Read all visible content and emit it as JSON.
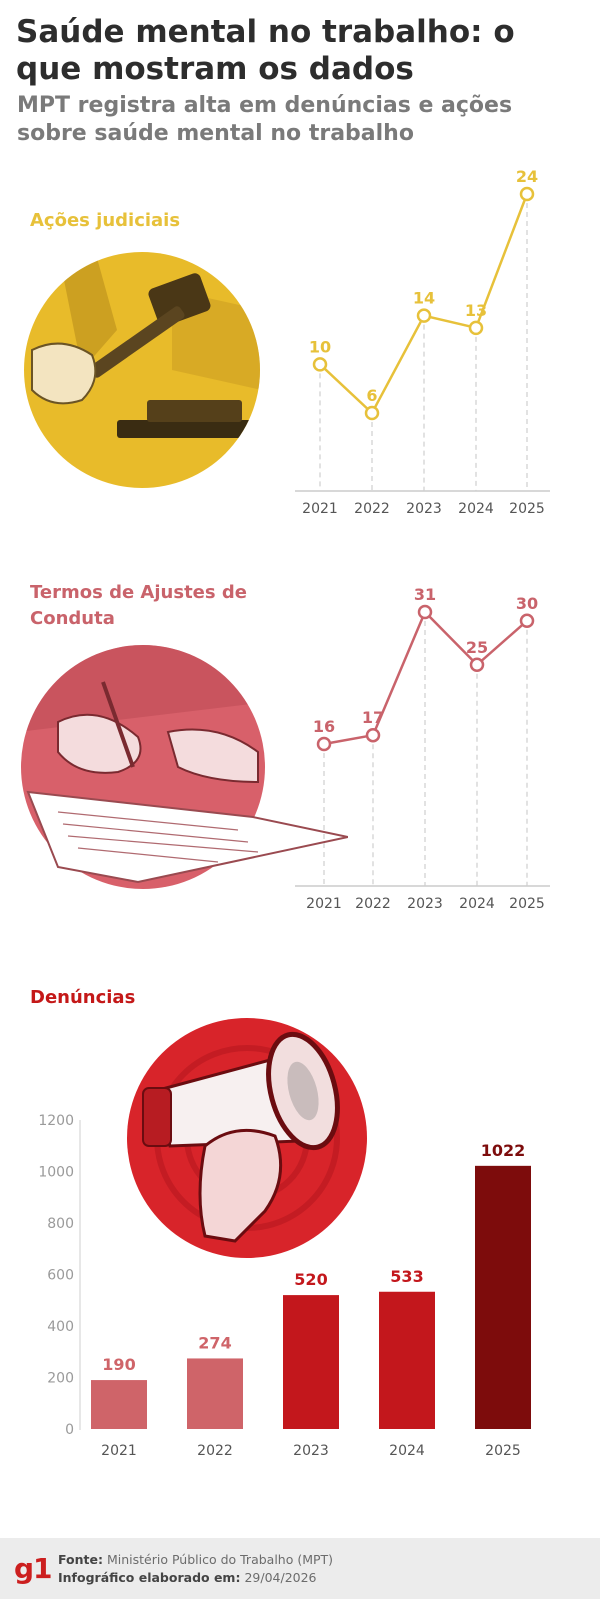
{
  "header": {
    "title": "Saúde mental no trabalho: o que mostram os dados",
    "subtitle": "MPT registra alta em denúncias e ações sobre saúde mental no trabalho"
  },
  "colors": {
    "acoes": "#e7c13a",
    "termos": "#c9636b",
    "denuncias_title": "#c41818",
    "bar_2021_2022": "#cf6469",
    "bar_2023_2024": "#c3171c",
    "bar_2025": "#7d0c0c"
  },
  "sections": {
    "acoes_title": "Ações judiciais",
    "termos_title": "Termos de Ajustes de Conduta",
    "denuncias_title": "Denúncias"
  },
  "illustrations": {
    "acoes": "gavel-illustration",
    "termos": "signing-document-illustration",
    "denuncias": "megaphone-illustration"
  },
  "chart_data": [
    {
      "type": "line",
      "title": "Ações judiciais",
      "x": [
        "2021",
        "2022",
        "2023",
        "2024",
        "2025"
      ],
      "values": [
        10,
        6,
        14,
        13,
        24
      ],
      "color": "#e7c13a"
    },
    {
      "type": "line",
      "title": "Termos de Ajustes de Conduta",
      "x": [
        "2021",
        "2022",
        "2023",
        "2024",
        "2025"
      ],
      "values": [
        16,
        17,
        31,
        25,
        30
      ],
      "color": "#c9636b"
    },
    {
      "type": "bar",
      "title": "Denúncias",
      "categories": [
        "2021",
        "2022",
        "2023",
        "2024",
        "2025"
      ],
      "values": [
        190,
        274,
        520,
        533,
        1022
      ],
      "ylim": [
        0,
        1200
      ],
      "yticks": [
        "0",
        "200",
        "400",
        "600",
        "800",
        "1000",
        "1200"
      ],
      "colors": [
        "#cf6469",
        "#cf6469",
        "#c3171c",
        "#c3171c",
        "#7d0c0c"
      ]
    }
  ],
  "footer": {
    "logo": "g1",
    "source_label": "Fonte:",
    "source": "Ministério Público do Trabalho (MPT)",
    "made_label": "Infográfico elaborado em:",
    "made_date": "29/04/2026"
  }
}
